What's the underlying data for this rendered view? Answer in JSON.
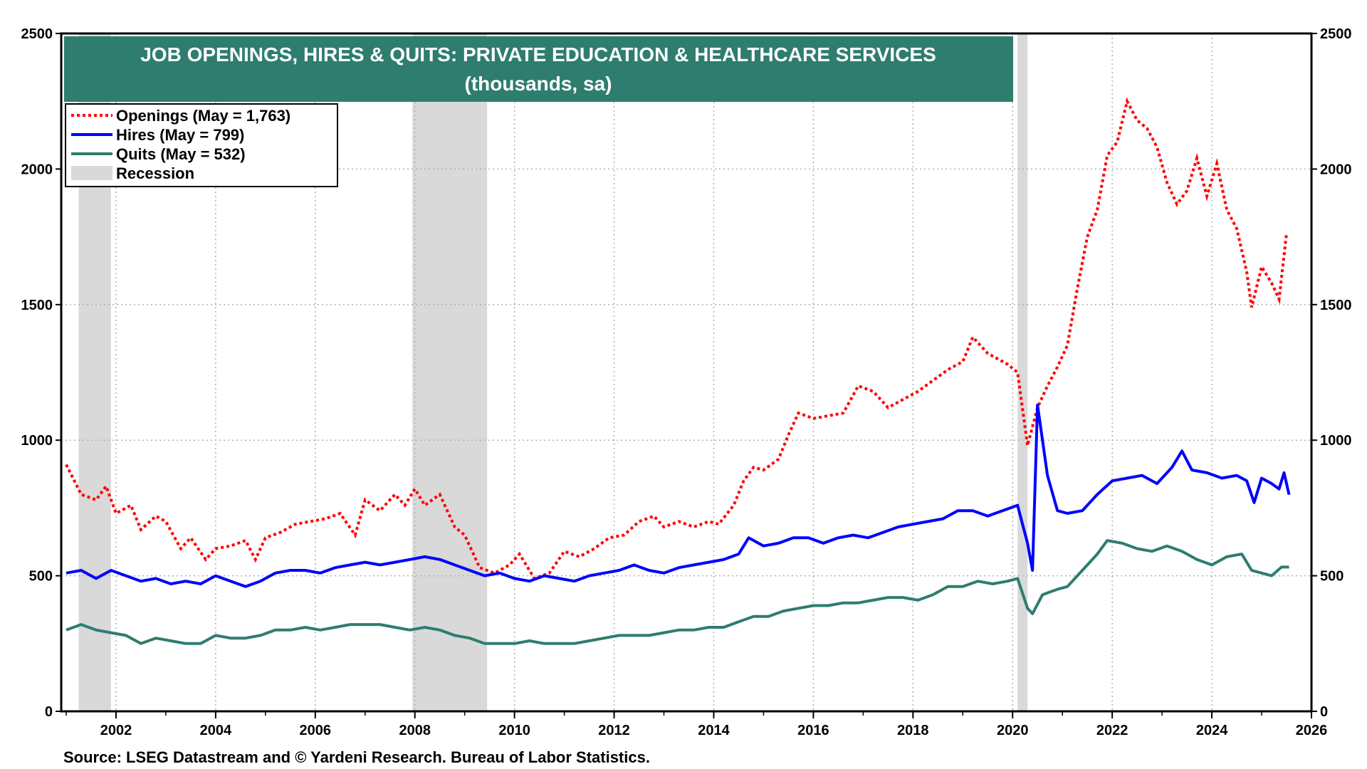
{
  "chart_data": {
    "type": "line",
    "title": "JOB OPENINGS, HIRES & QUITS: PRIVATE EDUCATION & HEALTHCARE SERVICES",
    "subtitle": "(thousands, sa)",
    "source": "Source: LSEG Datastream and © Yardeni Research. Bureau of Labor Statistics.",
    "xlim": [
      2000.9,
      2026.0
    ],
    "ylim": [
      0,
      2500
    ],
    "x_ticks": [
      "2002",
      "2004",
      "2006",
      "2008",
      "2010",
      "2012",
      "2014",
      "2016",
      "2018",
      "2020",
      "2022",
      "2024",
      "2026"
    ],
    "y_ticks": [
      "0",
      "500",
      "1000",
      "1500",
      "2000",
      "2500"
    ],
    "grid": true,
    "legend_position": "top-left",
    "legend": [
      {
        "label": "Openings (May = 1,763)",
        "color": "#ff0000",
        "style": "dotted"
      },
      {
        "label": "Hires (May = 799)",
        "color": "#0000ff",
        "style": "solid"
      },
      {
        "label": "Quits (May = 532)",
        "color": "#2e7d6f",
        "style": "solid"
      },
      {
        "label": "Recession",
        "color": "#d9d9d9",
        "style": "box"
      }
    ],
    "recessions": [
      [
        2001.25,
        2001.9
      ],
      [
        2007.95,
        2009.45
      ],
      [
        2020.1,
        2020.3
      ]
    ],
    "series": [
      {
        "name": "Openings",
        "color": "#ff0000",
        "style": "dotted",
        "points": [
          [
            2001.0,
            910
          ],
          [
            2001.3,
            800
          ],
          [
            2001.6,
            780
          ],
          [
            2001.8,
            830
          ],
          [
            2002.0,
            730
          ],
          [
            2002.3,
            760
          ],
          [
            2002.5,
            670
          ],
          [
            2002.8,
            720
          ],
          [
            2003.0,
            700
          ],
          [
            2003.3,
            600
          ],
          [
            2003.5,
            640
          ],
          [
            2003.8,
            560
          ],
          [
            2004.0,
            600
          ],
          [
            2004.3,
            610
          ],
          [
            2004.6,
            630
          ],
          [
            2004.8,
            560
          ],
          [
            2005.0,
            640
          ],
          [
            2005.3,
            660
          ],
          [
            2005.6,
            690
          ],
          [
            2005.9,
            700
          ],
          [
            2006.2,
            710
          ],
          [
            2006.5,
            730
          ],
          [
            2006.8,
            650
          ],
          [
            2007.0,
            780
          ],
          [
            2007.3,
            740
          ],
          [
            2007.6,
            800
          ],
          [
            2007.8,
            760
          ],
          [
            2008.0,
            820
          ],
          [
            2008.2,
            760
          ],
          [
            2008.5,
            800
          ],
          [
            2008.8,
            680
          ],
          [
            2009.0,
            650
          ],
          [
            2009.3,
            530
          ],
          [
            2009.6,
            510
          ],
          [
            2009.9,
            540
          ],
          [
            2010.1,
            580
          ],
          [
            2010.4,
            490
          ],
          [
            2010.7,
            510
          ],
          [
            2011.0,
            590
          ],
          [
            2011.3,
            570
          ],
          [
            2011.6,
            600
          ],
          [
            2011.9,
            640
          ],
          [
            2012.2,
            650
          ],
          [
            2012.5,
            700
          ],
          [
            2012.8,
            720
          ],
          [
            2013.0,
            680
          ],
          [
            2013.3,
            700
          ],
          [
            2013.6,
            680
          ],
          [
            2013.9,
            700
          ],
          [
            2014.1,
            690
          ],
          [
            2014.4,
            760
          ],
          [
            2014.6,
            850
          ],
          [
            2014.8,
            900
          ],
          [
            2015.0,
            890
          ],
          [
            2015.3,
            930
          ],
          [
            2015.5,
            1020
          ],
          [
            2015.7,
            1100
          ],
          [
            2016.0,
            1080
          ],
          [
            2016.3,
            1090
          ],
          [
            2016.6,
            1100
          ],
          [
            2016.9,
            1200
          ],
          [
            2017.2,
            1180
          ],
          [
            2017.5,
            1120
          ],
          [
            2017.8,
            1150
          ],
          [
            2018.1,
            1180
          ],
          [
            2018.4,
            1220
          ],
          [
            2018.7,
            1260
          ],
          [
            2019.0,
            1290
          ],
          [
            2019.2,
            1380
          ],
          [
            2019.5,
            1320
          ],
          [
            2019.7,
            1300
          ],
          [
            2019.9,
            1280
          ],
          [
            2020.1,
            1250
          ],
          [
            2020.3,
            980
          ],
          [
            2020.5,
            1120
          ],
          [
            2020.7,
            1200
          ],
          [
            2020.9,
            1270
          ],
          [
            2021.1,
            1350
          ],
          [
            2021.3,
            1560
          ],
          [
            2021.5,
            1750
          ],
          [
            2021.7,
            1850
          ],
          [
            2021.9,
            2050
          ],
          [
            2022.1,
            2100
          ],
          [
            2022.3,
            2250
          ],
          [
            2022.5,
            2180
          ],
          [
            2022.7,
            2150
          ],
          [
            2022.9,
            2080
          ],
          [
            2023.1,
            1950
          ],
          [
            2023.3,
            1870
          ],
          [
            2023.5,
            1920
          ],
          [
            2023.7,
            2040
          ],
          [
            2023.9,
            1900
          ],
          [
            2024.1,
            2020
          ],
          [
            2024.3,
            1850
          ],
          [
            2024.5,
            1780
          ],
          [
            2024.7,
            1620
          ],
          [
            2024.8,
            1490
          ],
          [
            2025.0,
            1640
          ],
          [
            2025.2,
            1580
          ],
          [
            2025.35,
            1520
          ],
          [
            2025.5,
            1763
          ]
        ]
      },
      {
        "name": "Hires",
        "color": "#0000ff",
        "style": "solid",
        "points": [
          [
            2001.0,
            510
          ],
          [
            2001.3,
            520
          ],
          [
            2001.6,
            490
          ],
          [
            2001.9,
            520
          ],
          [
            2002.2,
            500
          ],
          [
            2002.5,
            480
          ],
          [
            2002.8,
            490
          ],
          [
            2003.1,
            470
          ],
          [
            2003.4,
            480
          ],
          [
            2003.7,
            470
          ],
          [
            2004.0,
            500
          ],
          [
            2004.3,
            480
          ],
          [
            2004.6,
            460
          ],
          [
            2004.9,
            480
          ],
          [
            2005.2,
            510
          ],
          [
            2005.5,
            520
          ],
          [
            2005.8,
            520
          ],
          [
            2006.1,
            510
          ],
          [
            2006.4,
            530
          ],
          [
            2006.7,
            540
          ],
          [
            2007.0,
            550
          ],
          [
            2007.3,
            540
          ],
          [
            2007.6,
            550
          ],
          [
            2007.9,
            560
          ],
          [
            2008.2,
            570
          ],
          [
            2008.5,
            560
          ],
          [
            2008.8,
            540
          ],
          [
            2009.1,
            520
          ],
          [
            2009.4,
            500
          ],
          [
            2009.7,
            510
          ],
          [
            2010.0,
            490
          ],
          [
            2010.3,
            480
          ],
          [
            2010.6,
            500
          ],
          [
            2010.9,
            490
          ],
          [
            2011.2,
            480
          ],
          [
            2011.5,
            500
          ],
          [
            2011.8,
            510
          ],
          [
            2012.1,
            520
          ],
          [
            2012.4,
            540
          ],
          [
            2012.7,
            520
          ],
          [
            2013.0,
            510
          ],
          [
            2013.3,
            530
          ],
          [
            2013.6,
            540
          ],
          [
            2013.9,
            550
          ],
          [
            2014.2,
            560
          ],
          [
            2014.5,
            580
          ],
          [
            2014.7,
            640
          ],
          [
            2015.0,
            610
          ],
          [
            2015.3,
            620
          ],
          [
            2015.6,
            640
          ],
          [
            2015.9,
            640
          ],
          [
            2016.2,
            620
          ],
          [
            2016.5,
            640
          ],
          [
            2016.8,
            650
          ],
          [
            2017.1,
            640
          ],
          [
            2017.4,
            660
          ],
          [
            2017.7,
            680
          ],
          [
            2018.0,
            690
          ],
          [
            2018.3,
            700
          ],
          [
            2018.6,
            710
          ],
          [
            2018.9,
            740
          ],
          [
            2019.2,
            740
          ],
          [
            2019.5,
            720
          ],
          [
            2019.8,
            740
          ],
          [
            2020.1,
            760
          ],
          [
            2020.3,
            620
          ],
          [
            2020.4,
            520
          ],
          [
            2020.5,
            1130
          ],
          [
            2020.7,
            870
          ],
          [
            2020.9,
            740
          ],
          [
            2021.1,
            730
          ],
          [
            2021.4,
            740
          ],
          [
            2021.7,
            800
          ],
          [
            2022.0,
            850
          ],
          [
            2022.3,
            860
          ],
          [
            2022.6,
            870
          ],
          [
            2022.9,
            840
          ],
          [
            2023.2,
            900
          ],
          [
            2023.4,
            960
          ],
          [
            2023.6,
            890
          ],
          [
            2023.9,
            880
          ],
          [
            2024.2,
            860
          ],
          [
            2024.5,
            870
          ],
          [
            2024.7,
            850
          ],
          [
            2024.85,
            770
          ],
          [
            2025.0,
            860
          ],
          [
            2025.2,
            840
          ],
          [
            2025.35,
            820
          ],
          [
            2025.45,
            880
          ],
          [
            2025.55,
            799
          ]
        ]
      },
      {
        "name": "Quits",
        "color": "#2e7d6f",
        "style": "solid",
        "points": [
          [
            2001.0,
            300
          ],
          [
            2001.3,
            320
          ],
          [
            2001.6,
            300
          ],
          [
            2001.9,
            290
          ],
          [
            2002.2,
            280
          ],
          [
            2002.5,
            250
          ],
          [
            2002.8,
            270
          ],
          [
            2003.1,
            260
          ],
          [
            2003.4,
            250
          ],
          [
            2003.7,
            250
          ],
          [
            2004.0,
            280
          ],
          [
            2004.3,
            270
          ],
          [
            2004.6,
            270
          ],
          [
            2004.9,
            280
          ],
          [
            2005.2,
            300
          ],
          [
            2005.5,
            300
          ],
          [
            2005.8,
            310
          ],
          [
            2006.1,
            300
          ],
          [
            2006.4,
            310
          ],
          [
            2006.7,
            320
          ],
          [
            2007.0,
            320
          ],
          [
            2007.3,
            320
          ],
          [
            2007.6,
            310
          ],
          [
            2007.9,
            300
          ],
          [
            2008.2,
            310
          ],
          [
            2008.5,
            300
          ],
          [
            2008.8,
            280
          ],
          [
            2009.1,
            270
          ],
          [
            2009.4,
            250
          ],
          [
            2009.7,
            250
          ],
          [
            2010.0,
            250
          ],
          [
            2010.3,
            260
          ],
          [
            2010.6,
            250
          ],
          [
            2010.9,
            250
          ],
          [
            2011.2,
            250
          ],
          [
            2011.5,
            260
          ],
          [
            2011.8,
            270
          ],
          [
            2012.1,
            280
          ],
          [
            2012.4,
            280
          ],
          [
            2012.7,
            280
          ],
          [
            2013.0,
            290
          ],
          [
            2013.3,
            300
          ],
          [
            2013.6,
            300
          ],
          [
            2013.9,
            310
          ],
          [
            2014.2,
            310
          ],
          [
            2014.5,
            330
          ],
          [
            2014.8,
            350
          ],
          [
            2015.1,
            350
          ],
          [
            2015.4,
            370
          ],
          [
            2015.7,
            380
          ],
          [
            2016.0,
            390
          ],
          [
            2016.3,
            390
          ],
          [
            2016.6,
            400
          ],
          [
            2016.9,
            400
          ],
          [
            2017.2,
            410
          ],
          [
            2017.5,
            420
          ],
          [
            2017.8,
            420
          ],
          [
            2018.1,
            410
          ],
          [
            2018.4,
            430
          ],
          [
            2018.7,
            460
          ],
          [
            2019.0,
            460
          ],
          [
            2019.3,
            480
          ],
          [
            2019.6,
            470
          ],
          [
            2019.9,
            480
          ],
          [
            2020.1,
            490
          ],
          [
            2020.3,
            380
          ],
          [
            2020.4,
            360
          ],
          [
            2020.6,
            430
          ],
          [
            2020.9,
            450
          ],
          [
            2021.1,
            460
          ],
          [
            2021.4,
            520
          ],
          [
            2021.7,
            580
          ],
          [
            2021.9,
            630
          ],
          [
            2022.2,
            620
          ],
          [
            2022.5,
            600
          ],
          [
            2022.8,
            590
          ],
          [
            2023.1,
            610
          ],
          [
            2023.4,
            590
          ],
          [
            2023.7,
            560
          ],
          [
            2024.0,
            540
          ],
          [
            2024.3,
            570
          ],
          [
            2024.6,
            580
          ],
          [
            2024.8,
            520
          ],
          [
            2025.0,
            510
          ],
          [
            2025.2,
            500
          ],
          [
            2025.4,
            532
          ],
          [
            2025.55,
            532
          ]
        ]
      }
    ]
  }
}
